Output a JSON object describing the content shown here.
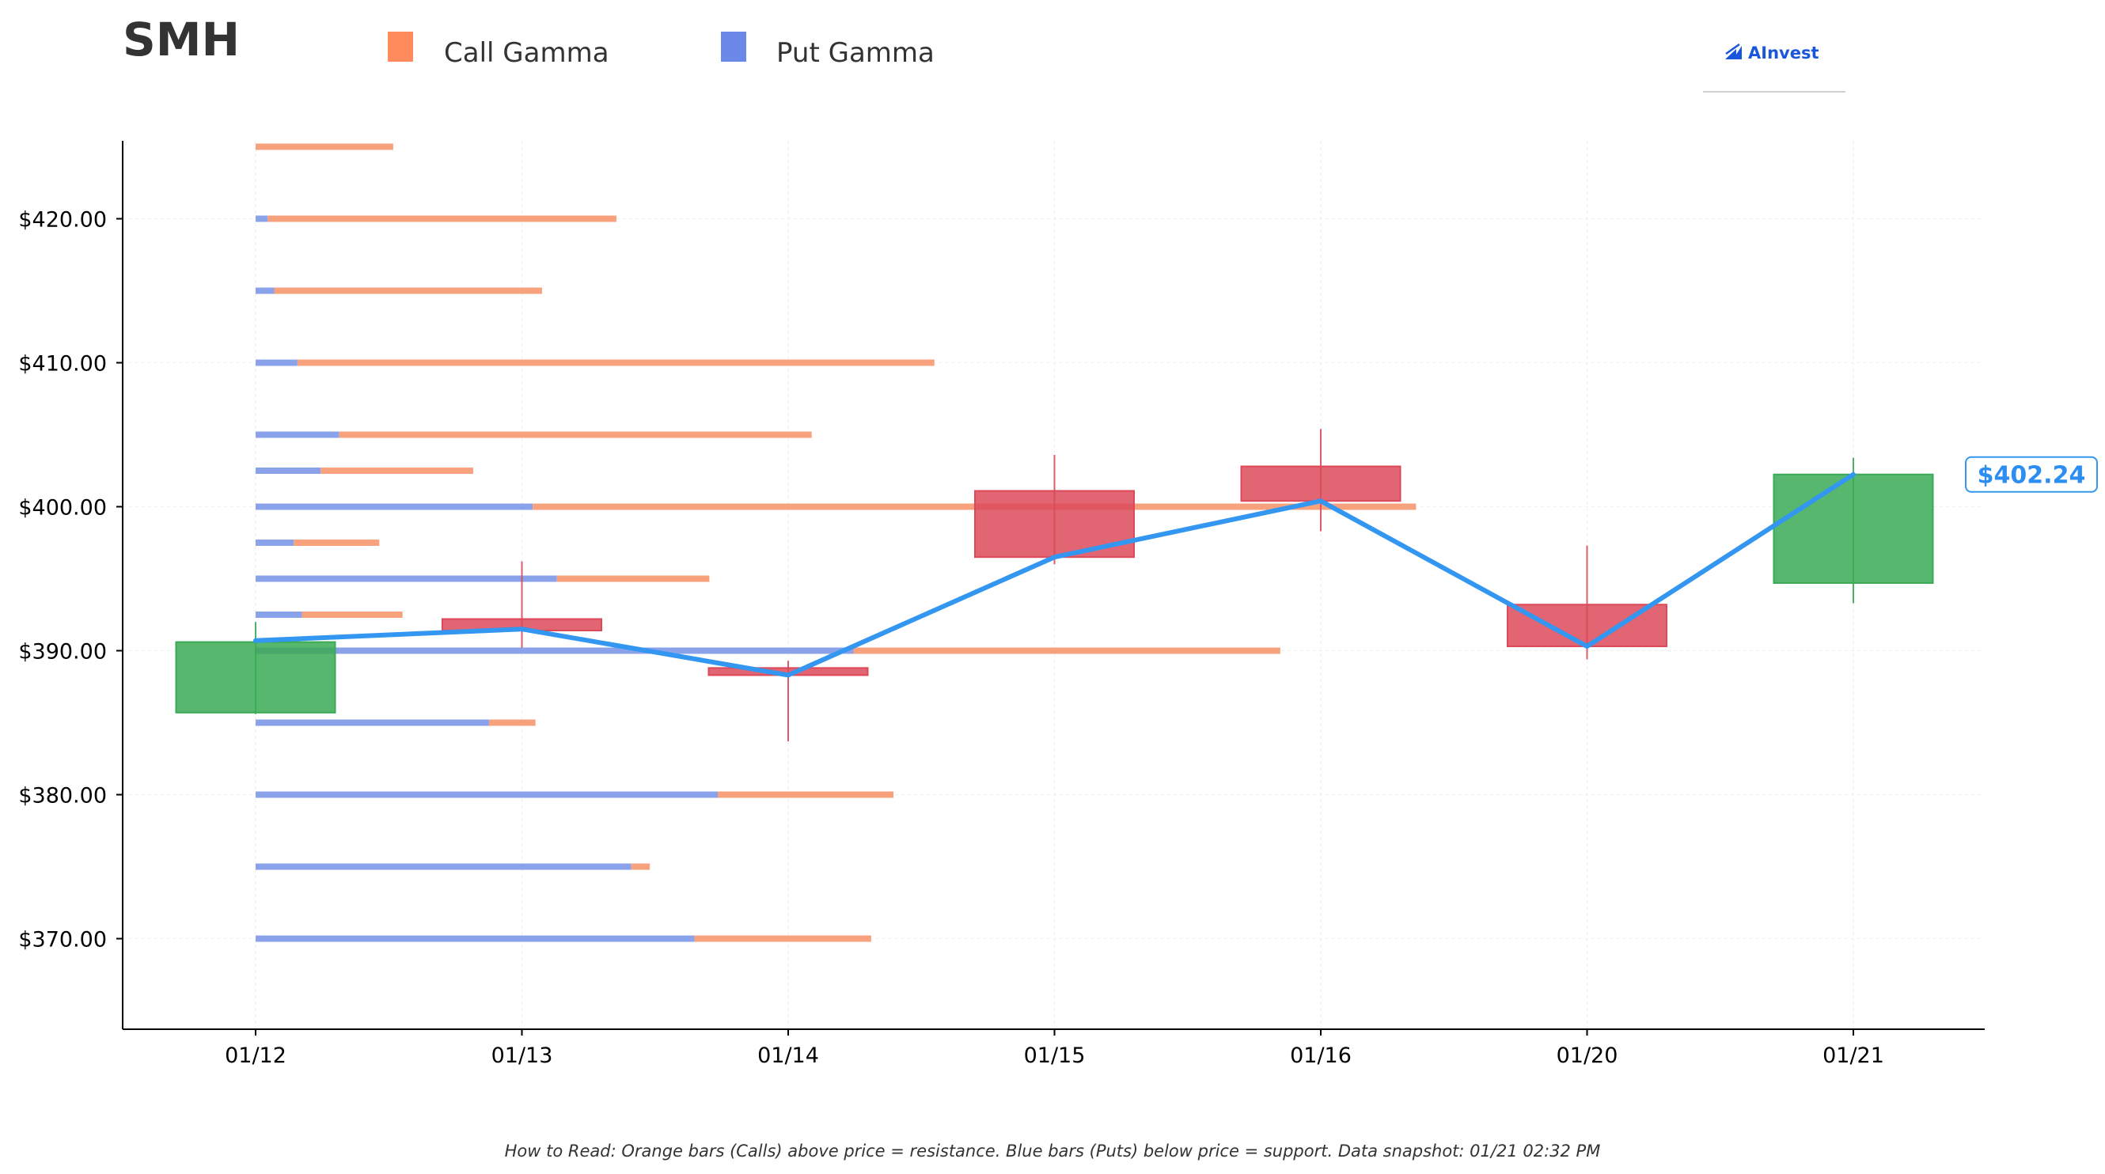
{
  "header": {
    "ticker": "SMH",
    "logo_text": "AInvest"
  },
  "legend": [
    {
      "label": "Call Gamma",
      "color": "#ff8a5c"
    },
    {
      "label": "Put Gamma",
      "color": "#6a88e8"
    }
  ],
  "footnote": "How to Read: Orange bars (Calls) above price = resistance. Blue bars (Puts) below price = support. Data snapshot: 01/21 02:32 PM",
  "colors": {
    "call": "#f7a27d",
    "put": "#8aa2ea",
    "up": "#3aaa55",
    "down": "#dc4a5a",
    "price_line": "#3396f0"
  },
  "chart_data": {
    "type": "candlestick",
    "title": "",
    "xlabel": "",
    "ylabel": "",
    "ylim": [
      363.8,
      425.3
    ],
    "categories": [
      "01/12",
      "01/13",
      "01/14",
      "01/15",
      "01/16",
      "01/20",
      "01/21"
    ],
    "y_ticks": [
      370,
      380,
      390,
      400,
      410,
      420
    ],
    "y_tick_labels": [
      "$370.00",
      "$380.00",
      "$390.00",
      "$400.00",
      "$410.00",
      "$420.00"
    ],
    "candles": [
      {
        "date": "01/12",
        "open": 385.7,
        "high": 392.0,
        "low": 385.6,
        "close": 390.6
      },
      {
        "date": "01/13",
        "open": 392.2,
        "high": 396.2,
        "low": 390.2,
        "close": 391.4
      },
      {
        "date": "01/14",
        "open": 388.8,
        "high": 389.3,
        "low": 383.7,
        "close": 388.3
      },
      {
        "date": "01/15",
        "open": 401.1,
        "high": 403.6,
        "low": 396.0,
        "close": 396.5
      },
      {
        "date": "01/16",
        "open": 402.8,
        "high": 405.4,
        "low": 398.3,
        "close": 400.4
      },
      {
        "date": "01/20",
        "open": 393.2,
        "high": 397.3,
        "low": 389.4,
        "close": 390.3
      },
      {
        "date": "01/21",
        "open": 394.7,
        "high": 403.4,
        "low": 393.3,
        "close": 402.24
      }
    ],
    "price_line": [
      390.7,
      391.5,
      388.3,
      396.5,
      400.4,
      390.3,
      402.24
    ],
    "last_price_label": "$402.24",
    "gamma_levels": [
      {
        "strike": 370,
        "put": 0.472,
        "call": 0.19
      },
      {
        "strike": 375,
        "put": 0.404,
        "call": 0.02
      },
      {
        "strike": 380,
        "put": 0.497,
        "call": 0.189
      },
      {
        "strike": 385,
        "put": 0.251,
        "call": 0.05
      },
      {
        "strike": 390,
        "put": 0.643,
        "call": 0.459
      },
      {
        "strike": 392.5,
        "put": 0.05,
        "call": 0.108
      },
      {
        "strike": 395,
        "put": 0.324,
        "call": 0.164
      },
      {
        "strike": 397.5,
        "put": 0.041,
        "call": 0.092
      },
      {
        "strike": 400,
        "put": 0.298,
        "call": 0.95
      },
      {
        "strike": 402.5,
        "put": 0.07,
        "call": 0.164
      },
      {
        "strike": 405,
        "put": 0.09,
        "call": 0.508
      },
      {
        "strike": 410,
        "put": 0.045,
        "call": 0.685
      },
      {
        "strike": 415,
        "put": 0.02,
        "call": 0.288
      },
      {
        "strike": 420,
        "put": 0.013,
        "call": 0.375
      },
      {
        "strike": 425,
        "put": 0.0,
        "call": 0.148
      }
    ]
  }
}
